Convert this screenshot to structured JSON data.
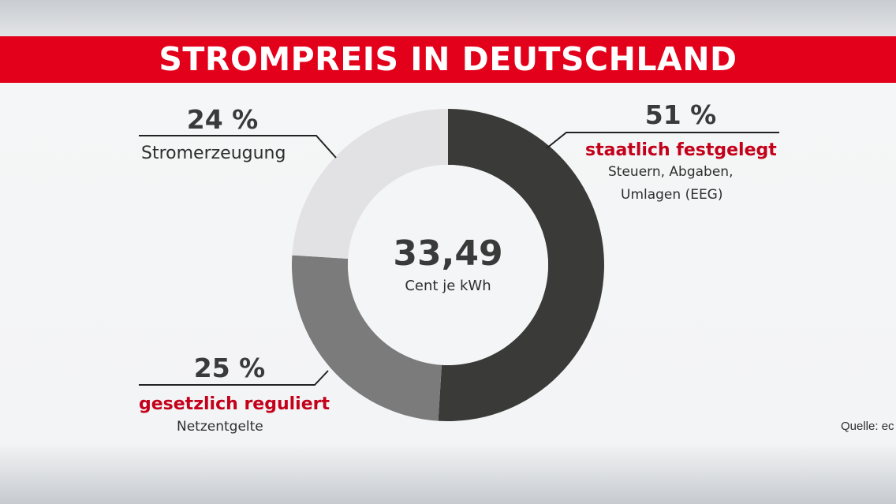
{
  "title": "STROMPREIS IN DEUTSCHLAND",
  "source": "Quelle: ec",
  "chart_data": {
    "type": "pie",
    "title": "STROMPREIS IN DEUTSCHLAND",
    "center_value": "33,49",
    "center_unit": "Cent je kWh",
    "slices": [
      {
        "percent_label": "51 %",
        "value": 51,
        "label": "staatlich festgelegt",
        "sublabel_1": "Steuern, Abgaben,",
        "sublabel_2": "Umlagen (EEG)",
        "color": "#3a3a38"
      },
      {
        "percent_label": "25 %",
        "value": 25,
        "label": "gesetzlich reguliert",
        "sublabel_1": "Netzentgelte",
        "color": "#7b7b7b"
      },
      {
        "percent_label": "24 %",
        "value": 24,
        "label": "Stromerzeugung",
        "color": "#e2e2e4"
      }
    ],
    "accent_color": "#e2001a",
    "label_red": "#c4001a"
  }
}
